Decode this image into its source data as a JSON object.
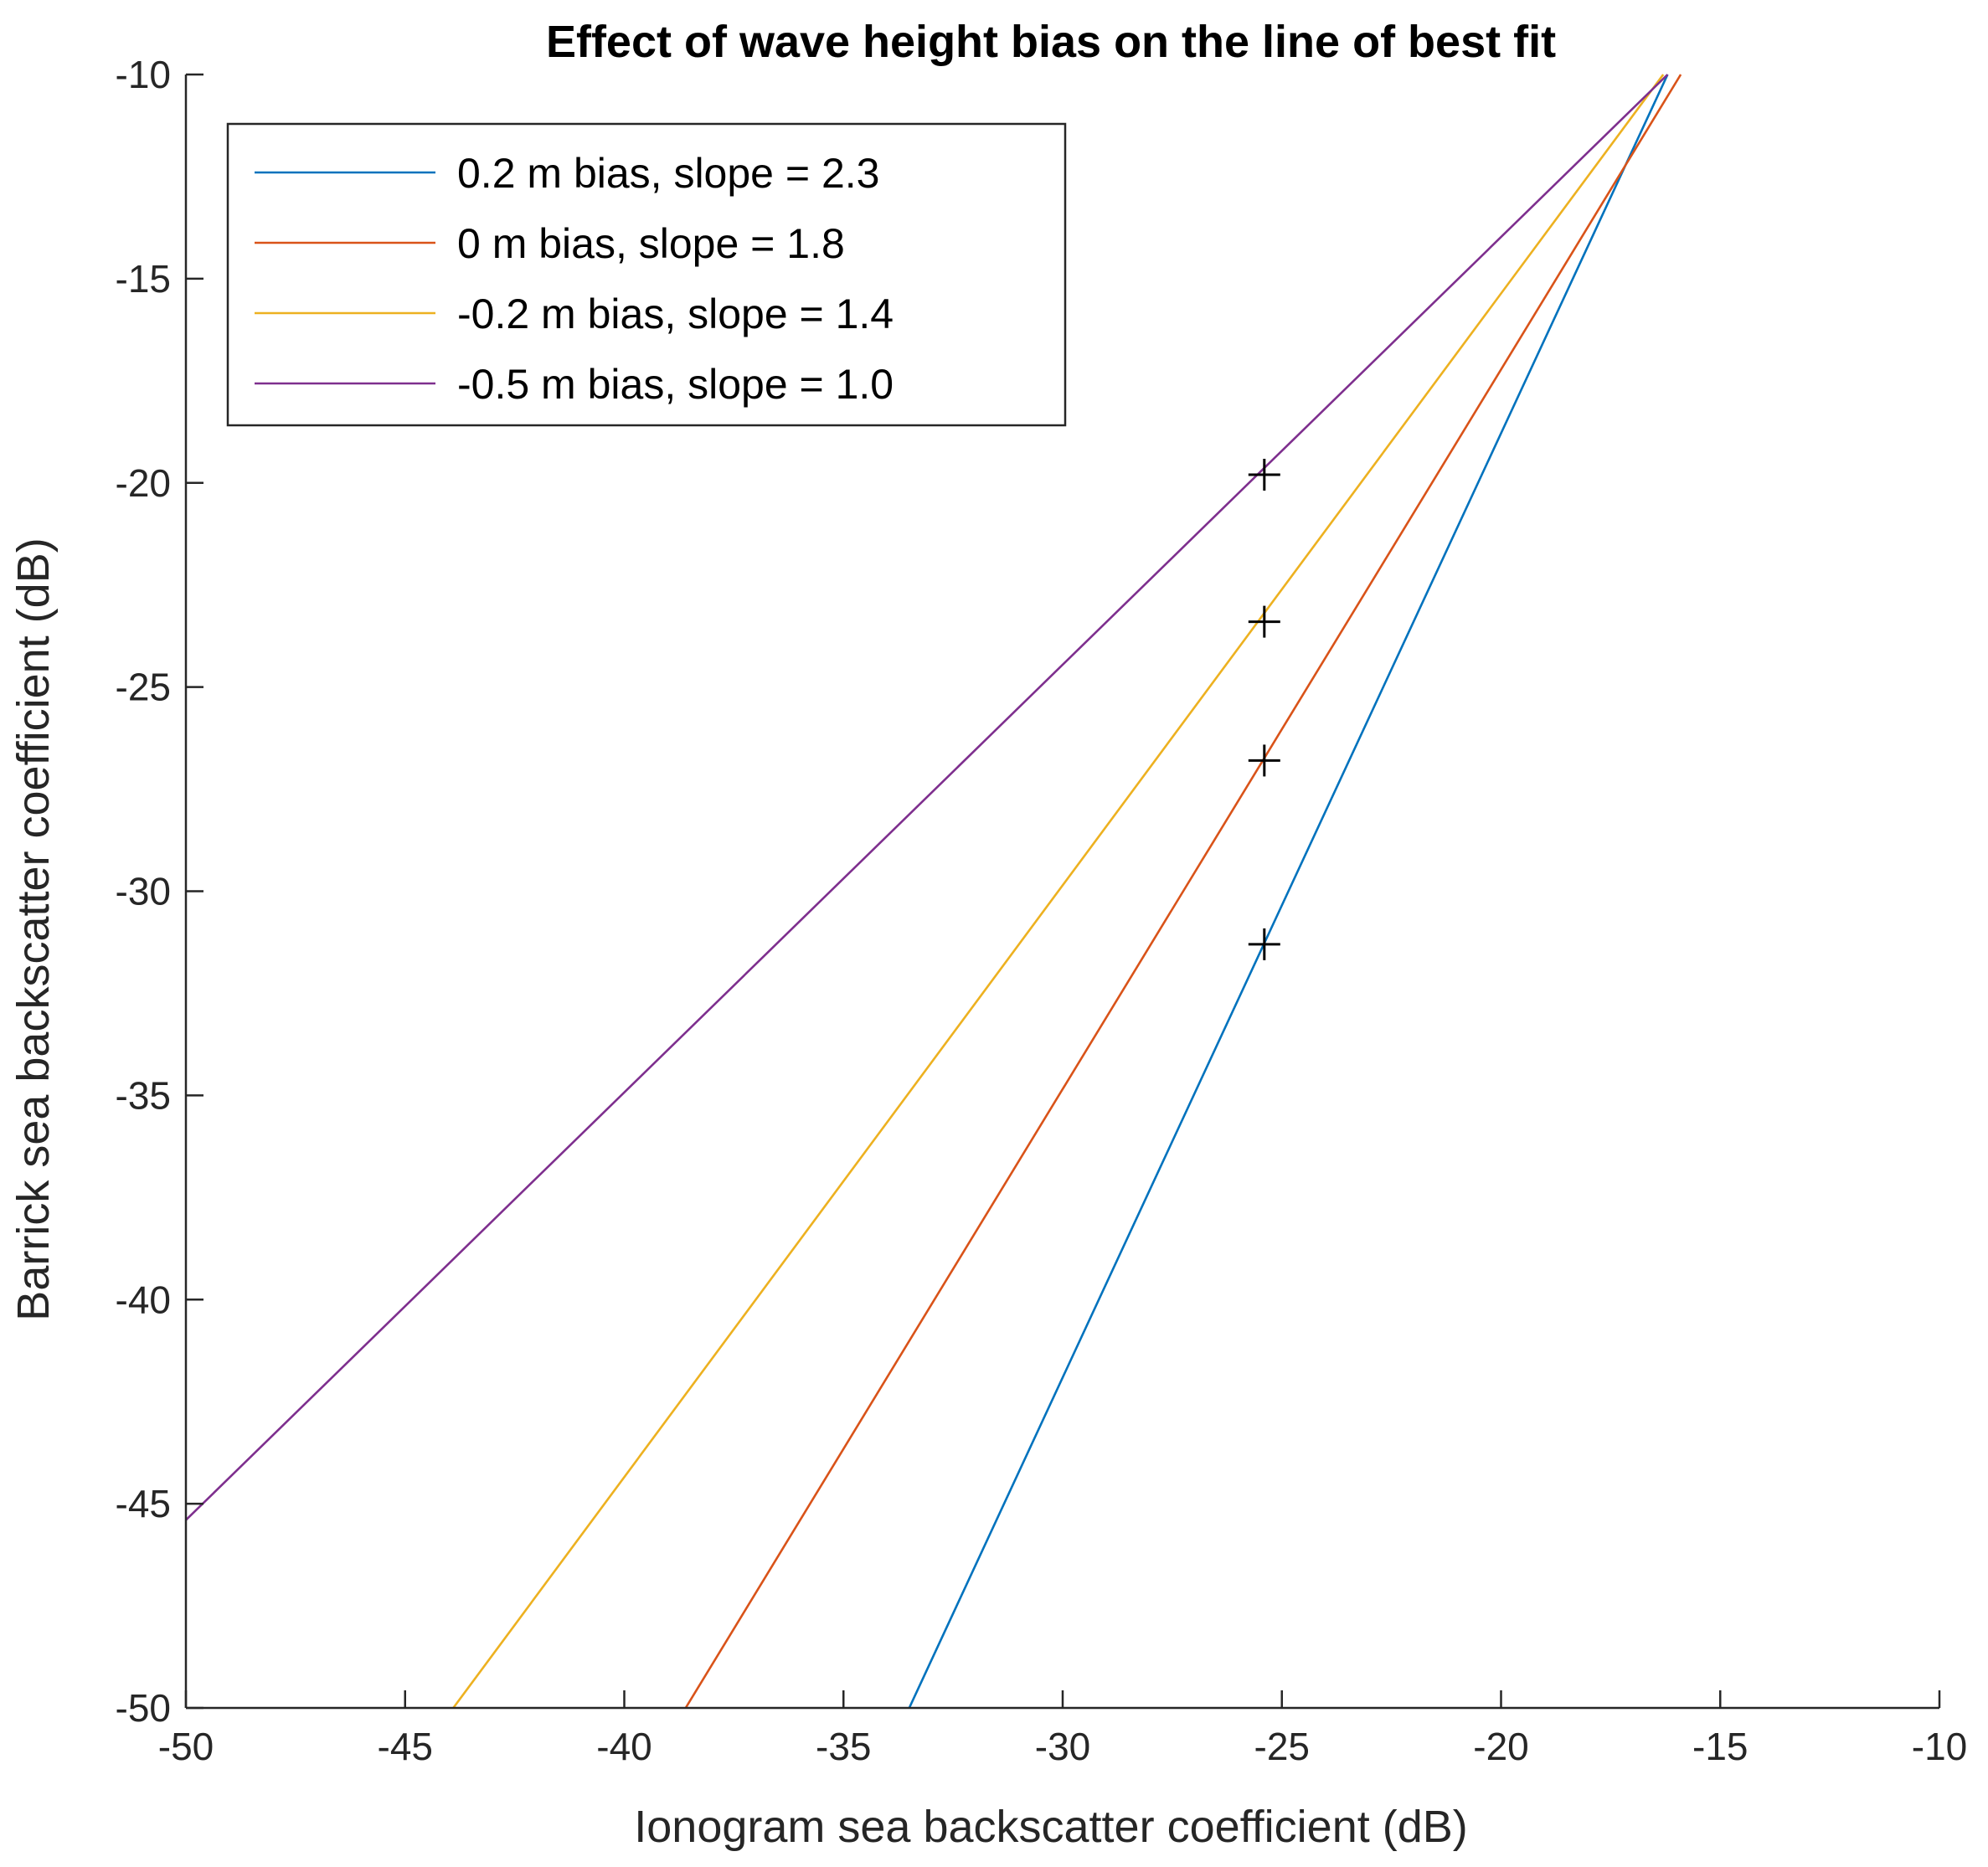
{
  "chart_data": {
    "type": "line",
    "title": "Effect of wave height bias on the line of best fit",
    "xlabel": "Ionogram sea backscatter coefficient (dB)",
    "ylabel": "Barrick sea backscatter coefficient (dB)",
    "xlim": [
      -50,
      -10
    ],
    "ylim": [
      -50,
      -10
    ],
    "xticks": [
      -50,
      -45,
      -40,
      -35,
      -30,
      -25,
      -20,
      -15,
      -10
    ],
    "yticks": [
      -50,
      -45,
      -40,
      -35,
      -30,
      -25,
      -20,
      -15,
      -10
    ],
    "grid": false,
    "legend_position": "top-left",
    "series": [
      {
        "name": "0.2 m bias, slope = 2.3",
        "color": "#0072BD",
        "x": [
          -33.5,
          -16.2
        ],
        "y": [
          -50,
          -10
        ]
      },
      {
        "name": "0 m bias, slope = 1.8",
        "color": "#D95319",
        "x": [
          -38.6,
          -15.9
        ],
        "y": [
          -50,
          -10
        ]
      },
      {
        "name": "-0.2 m bias, slope = 1.4",
        "color": "#EDB120",
        "x": [
          -43.9,
          -16.3
        ],
        "y": [
          -50,
          -10
        ]
      },
      {
        "name": "-0.5 m bias, slope = 1.0",
        "color": "#7E2F8E",
        "x": [
          -50,
          -16.2
        ],
        "y": [
          -45.4,
          -10
        ]
      }
    ],
    "markers": {
      "symbol": "+",
      "color": "#000000",
      "points": [
        {
          "x": -25.4,
          "y": -19.8
        },
        {
          "x": -25.4,
          "y": -23.4
        },
        {
          "x": -25.4,
          "y": -26.8
        },
        {
          "x": -25.4,
          "y": -31.3
        }
      ]
    }
  }
}
